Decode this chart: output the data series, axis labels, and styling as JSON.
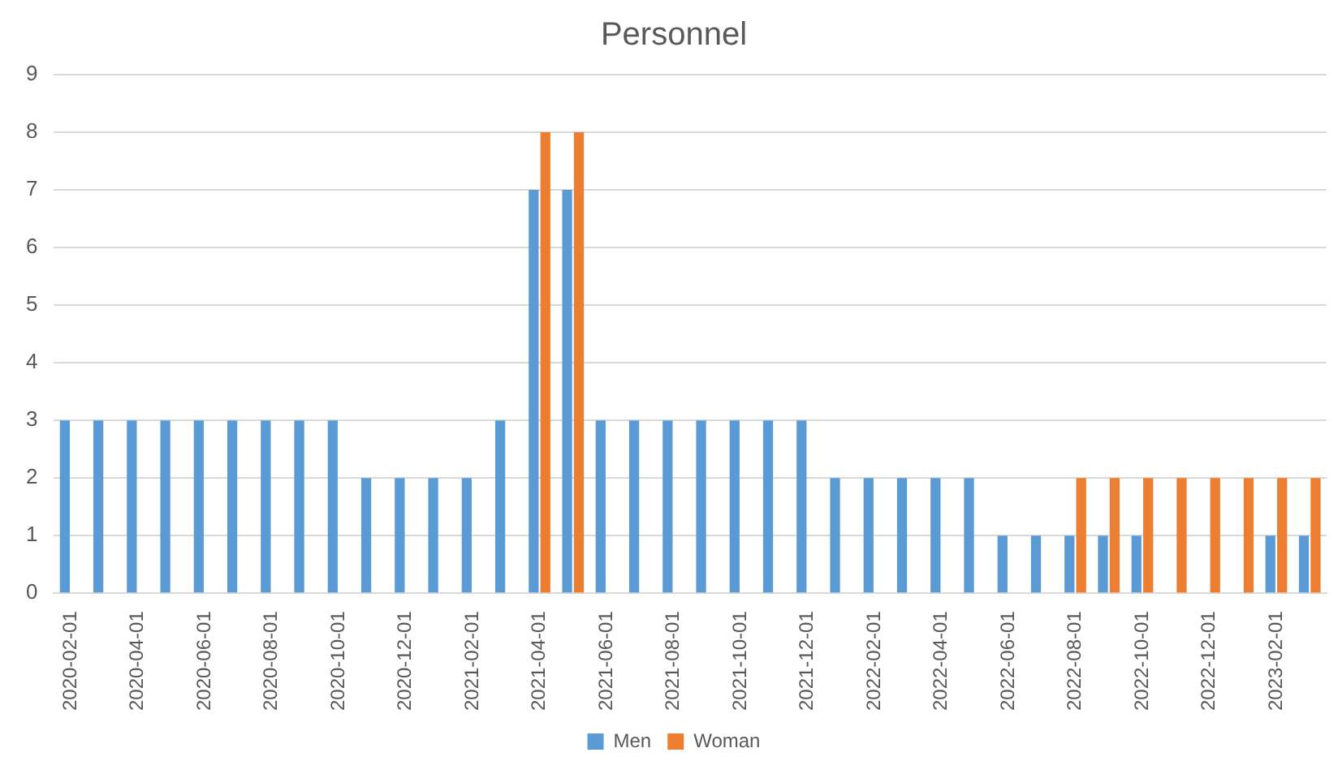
{
  "chart_data": {
    "type": "bar",
    "title": "Personnel",
    "categories": [
      "2020-02-01",
      null,
      "2020-04-01",
      null,
      "2020-06-01",
      null,
      "2020-08-01",
      null,
      "2020-10-01",
      null,
      "2020-12-01",
      null,
      "2021-02-01",
      null,
      "2021-04-01",
      null,
      "2021-06-01",
      null,
      "2021-08-01",
      null,
      "2021-10-01",
      null,
      "2021-12-01",
      null,
      "2022-02-01",
      null,
      "2022-04-01",
      null,
      "2022-06-01",
      null,
      "2022-08-01",
      null,
      "2022-10-01",
      null,
      "2022-12-01",
      null,
      "2023-02-01",
      null
    ],
    "series": [
      {
        "name": "Men",
        "color": "#5b9bd5",
        "values": [
          3,
          3,
          3,
          3,
          3,
          3,
          3,
          3,
          3,
          2,
          2,
          2,
          2,
          3,
          7,
          7,
          3,
          3,
          3,
          3,
          3,
          3,
          3,
          2,
          2,
          2,
          2,
          2,
          1,
          1,
          1,
          1,
          1,
          0,
          0,
          0,
          1,
          1
        ]
      },
      {
        "name": "Woman",
        "color": "#ed7d31",
        "values": [
          0,
          0,
          0,
          0,
          0,
          0,
          0,
          0,
          0,
          0,
          0,
          0,
          0,
          0,
          8,
          8,
          0,
          0,
          0,
          0,
          0,
          0,
          0,
          0,
          0,
          0,
          0,
          0,
          0,
          0,
          2,
          2,
          2,
          2,
          2,
          2,
          2,
          2
        ]
      }
    ],
    "ylim": [
      0,
      9
    ],
    "yticks": [
      0,
      1,
      2,
      3,
      4,
      5,
      6,
      7,
      8,
      9
    ],
    "grid": "y",
    "legend": "bottom"
  }
}
